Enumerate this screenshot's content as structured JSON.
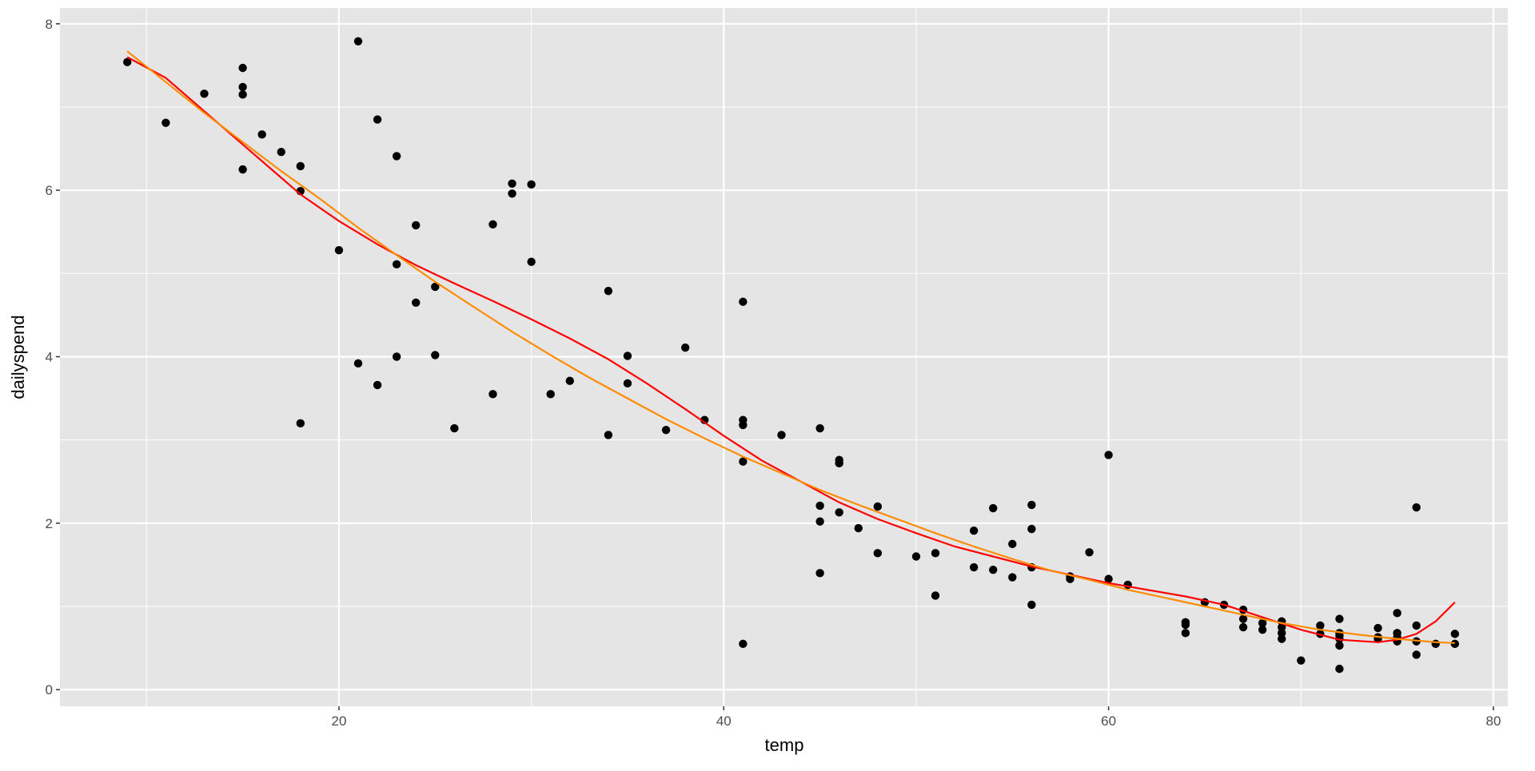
{
  "chart_data": {
    "type": "scatter",
    "title": "",
    "xlabel": "temp",
    "ylabel": "dailyspend",
    "xlim": [
      5.5,
      80.75
    ],
    "ylim": [
      -0.2,
      8.19
    ],
    "x_ticks": [
      20,
      40,
      60,
      80
    ],
    "y_ticks": [
      0,
      2,
      4,
      6,
      8
    ],
    "x_minor": [
      10,
      30,
      50,
      70
    ],
    "y_minor": [
      1,
      3,
      5,
      7
    ],
    "grid": true,
    "colors": {
      "panel": "#e5e5e5",
      "grid": "#ffffff",
      "points": "#000000",
      "loess": "#ff0000",
      "poly": "#ff8c00",
      "tick_text": "#4d4d4d"
    },
    "points": [
      [
        9,
        7.54
      ],
      [
        11,
        6.81
      ],
      [
        13,
        7.16
      ],
      [
        15,
        7.47
      ],
      [
        15,
        7.24
      ],
      [
        15,
        7.15
      ],
      [
        15,
        6.25
      ],
      [
        16,
        6.67
      ],
      [
        17,
        6.46
      ],
      [
        18,
        6.29
      ],
      [
        18,
        5.99
      ],
      [
        18,
        3.2
      ],
      [
        20,
        5.28
      ],
      [
        21,
        7.79
      ],
      [
        21,
        3.92
      ],
      [
        22,
        6.85
      ],
      [
        22,
        3.66
      ],
      [
        23,
        6.41
      ],
      [
        23,
        5.11
      ],
      [
        23,
        4.0
      ],
      [
        24,
        5.58
      ],
      [
        24,
        4.65
      ],
      [
        25,
        4.84
      ],
      [
        25,
        4.02
      ],
      [
        26,
        3.14
      ],
      [
        28,
        5.59
      ],
      [
        28,
        3.55
      ],
      [
        29,
        6.08
      ],
      [
        29,
        5.96
      ],
      [
        30,
        6.07
      ],
      [
        30,
        5.14
      ],
      [
        31,
        3.55
      ],
      [
        32,
        3.71
      ],
      [
        34,
        4.79
      ],
      [
        34,
        3.06
      ],
      [
        35,
        4.01
      ],
      [
        35,
        3.68
      ],
      [
        37,
        3.12
      ],
      [
        38,
        4.11
      ],
      [
        39,
        3.24
      ],
      [
        41,
        4.66
      ],
      [
        41,
        3.24
      ],
      [
        41,
        3.18
      ],
      [
        41,
        2.74
      ],
      [
        41,
        0.55
      ],
      [
        43,
        3.06
      ],
      [
        45,
        3.14
      ],
      [
        45,
        2.21
      ],
      [
        45,
        2.02
      ],
      [
        45,
        1.4
      ],
      [
        46,
        2.76
      ],
      [
        46,
        2.72
      ],
      [
        46,
        2.13
      ],
      [
        47,
        1.94
      ],
      [
        48,
        2.2
      ],
      [
        48,
        1.64
      ],
      [
        50,
        1.6
      ],
      [
        51,
        1.64
      ],
      [
        51,
        1.13
      ],
      [
        53,
        1.91
      ],
      [
        53,
        1.47
      ],
      [
        54,
        2.18
      ],
      [
        54,
        1.44
      ],
      [
        55,
        1.75
      ],
      [
        55,
        1.35
      ],
      [
        56,
        2.22
      ],
      [
        56,
        1.93
      ],
      [
        56,
        1.47
      ],
      [
        56,
        1.02
      ],
      [
        58,
        1.36
      ],
      [
        58,
        1.33
      ],
      [
        59,
        1.65
      ],
      [
        60,
        2.82
      ],
      [
        60,
        1.33
      ],
      [
        61,
        1.26
      ],
      [
        64,
        0.81
      ],
      [
        64,
        0.78
      ],
      [
        64,
        0.68
      ],
      [
        65,
        1.05
      ],
      [
        66,
        1.02
      ],
      [
        67,
        0.96
      ],
      [
        67,
        0.85
      ],
      [
        67,
        0.75
      ],
      [
        68,
        0.8
      ],
      [
        68,
        0.72
      ],
      [
        69,
        0.82
      ],
      [
        69,
        0.75
      ],
      [
        69,
        0.68
      ],
      [
        69,
        0.61
      ],
      [
        70,
        0.35
      ],
      [
        71,
        0.77
      ],
      [
        71,
        0.67
      ],
      [
        72,
        0.85
      ],
      [
        72,
        0.68
      ],
      [
        72,
        0.65
      ],
      [
        72,
        0.61
      ],
      [
        72,
        0.53
      ],
      [
        72,
        0.25
      ],
      [
        74,
        0.74
      ],
      [
        74,
        0.63
      ],
      [
        74,
        0.61
      ],
      [
        75,
        0.92
      ],
      [
        75,
        0.68
      ],
      [
        75,
        0.63
      ],
      [
        75,
        0.58
      ],
      [
        76,
        2.19
      ],
      [
        76,
        0.77
      ],
      [
        76,
        0.58
      ],
      [
        76,
        0.42
      ],
      [
        77,
        0.55
      ],
      [
        78,
        0.67
      ],
      [
        78,
        0.55
      ]
    ],
    "series": [
      {
        "kind": "line",
        "color": "#ff0000",
        "x": [
          9,
          11,
          13,
          15,
          17,
          18,
          20,
          22,
          24,
          26,
          28,
          30,
          32,
          34,
          36,
          38,
          40,
          42,
          44,
          46,
          48,
          50,
          52,
          54,
          56,
          58,
          60,
          62,
          64,
          66,
          68,
          70,
          72,
          74,
          75,
          76,
          77,
          78
        ],
        "y": [
          7.6,
          7.35,
          6.95,
          6.55,
          6.15,
          5.95,
          5.63,
          5.35,
          5.1,
          4.88,
          4.67,
          4.45,
          4.22,
          3.97,
          3.68,
          3.37,
          3.05,
          2.75,
          2.5,
          2.25,
          2.05,
          1.88,
          1.72,
          1.6,
          1.48,
          1.38,
          1.28,
          1.2,
          1.12,
          1.02,
          0.87,
          0.72,
          0.6,
          0.57,
          0.6,
          0.67,
          0.82,
          1.05
        ]
      },
      {
        "kind": "line",
        "color": "#ff8c00",
        "x": [
          9,
          11,
          13,
          15,
          17,
          19,
          21,
          23,
          25,
          27,
          29,
          31,
          33,
          35,
          37,
          39,
          41,
          43,
          45,
          47,
          49,
          51,
          53,
          55,
          57,
          59,
          61,
          63,
          65,
          67,
          69,
          71,
          73,
          75,
          77,
          78
        ],
        "y": [
          7.67,
          7.3,
          6.93,
          6.58,
          6.23,
          5.9,
          5.55,
          5.22,
          4.9,
          4.6,
          4.3,
          4.02,
          3.75,
          3.5,
          3.25,
          3.02,
          2.8,
          2.6,
          2.4,
          2.22,
          2.05,
          1.88,
          1.72,
          1.57,
          1.43,
          1.32,
          1.2,
          1.1,
          1.0,
          0.9,
          0.8,
          0.72,
          0.66,
          0.61,
          0.57,
          0.56
        ]
      }
    ]
  }
}
